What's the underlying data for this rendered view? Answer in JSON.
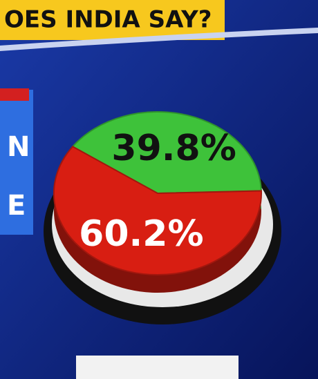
{
  "title": "OES INDIA SAY?",
  "side_labels": [
    "N",
    "E"
  ],
  "chart_data": {
    "type": "pie",
    "values": [
      39.8,
      60.2
    ],
    "value_labels": [
      "39.8%",
      "60.2%"
    ],
    "colors": [
      "#3ec23a",
      "#d81e12"
    ]
  }
}
